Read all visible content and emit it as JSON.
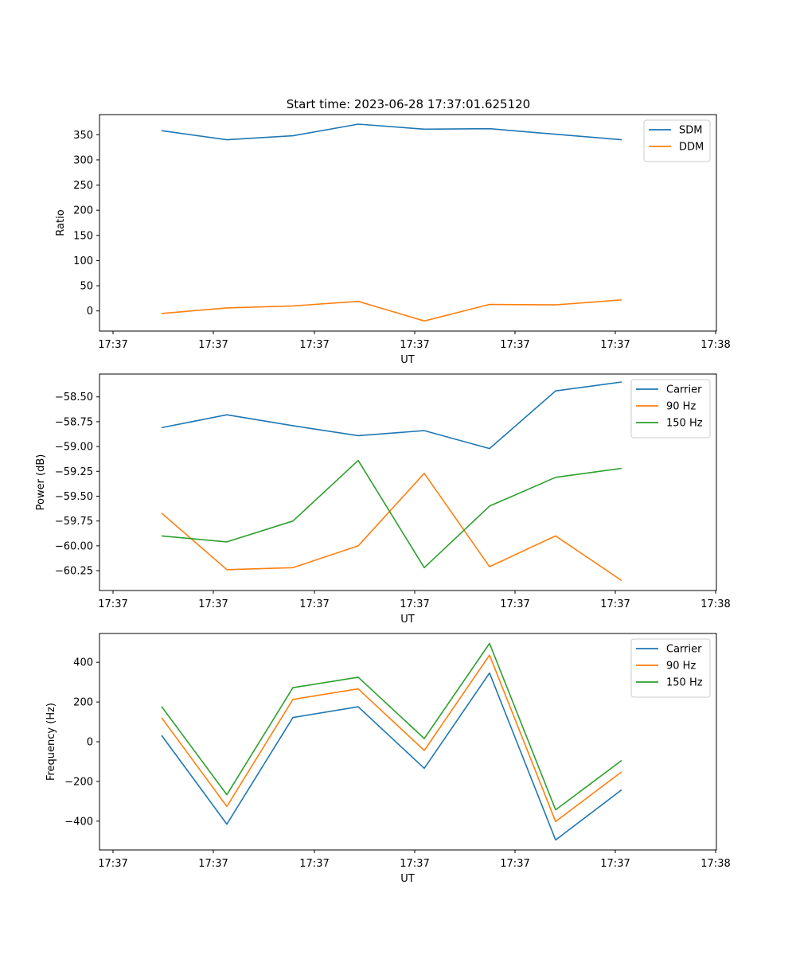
{
  "figure_title": "Start time: 2023-06-28 17:37:01.625120",
  "chart_data": [
    {
      "type": "line",
      "title": "Start time: 2023-06-28 17:37:01.625120",
      "xlabel": "UT",
      "ylabel": "Ratio",
      "x_ticks": [
        "17:37",
        "17:37",
        "17:37",
        "17:37",
        "17:37",
        "17:37",
        "17:38"
      ],
      "x_points": 8,
      "ylim": [
        -40,
        390
      ],
      "y_ticks": [
        0,
        50,
        100,
        150,
        200,
        250,
        300,
        350
      ],
      "y_tick_labels": [
        "0",
        "50",
        "100",
        "150",
        "200",
        "250",
        "300",
        "350"
      ],
      "legend_position": "top-right",
      "grid": false,
      "series": [
        {
          "name": "SDM",
          "color": "#1f77b4",
          "values": [
            358,
            340,
            348,
            371,
            361,
            362,
            351,
            340
          ]
        },
        {
          "name": "DDM",
          "color": "#ff7f0e",
          "values": [
            -5,
            6,
            10,
            19,
            -20,
            13,
            12,
            22
          ]
        }
      ]
    },
    {
      "type": "line",
      "title": "",
      "xlabel": "UT",
      "ylabel": "Power (dB)",
      "x_ticks": [
        "17:37",
        "17:37",
        "17:37",
        "17:37",
        "17:37",
        "17:37",
        "17:38"
      ],
      "x_points": 8,
      "ylim": [
        -60.45,
        -58.27
      ],
      "y_ticks": [
        -60.25,
        -60.0,
        -59.75,
        -59.5,
        -59.25,
        -59.0,
        -58.75,
        -58.5
      ],
      "y_tick_labels": [
        "−60.25",
        "−60.00",
        "−59.75",
        "−59.50",
        "−59.25",
        "−59.00",
        "−58.75",
        "−58.50"
      ],
      "legend_position": "top-right",
      "grid": false,
      "series": [
        {
          "name": "Carrier",
          "color": "#1f77b4",
          "values": [
            -58.81,
            -58.68,
            -58.79,
            -58.89,
            -58.84,
            -59.02,
            -58.44,
            -58.35
          ]
        },
        {
          "name": "90 Hz",
          "color": "#ff7f0e",
          "values": [
            -59.67,
            -60.24,
            -60.22,
            -60.0,
            -59.27,
            -60.21,
            -59.9,
            -60.35
          ]
        },
        {
          "name": "150 Hz",
          "color": "#2ca02c",
          "values": [
            -59.9,
            -59.96,
            -59.75,
            -59.14,
            -60.22,
            -59.6,
            -59.31,
            -59.22
          ]
        }
      ]
    },
    {
      "type": "line",
      "title": "",
      "xlabel": "UT",
      "ylabel": "Frequency (Hz)",
      "x_ticks": [
        "17:37",
        "17:37",
        "17:37",
        "17:37",
        "17:37",
        "17:37",
        "17:38"
      ],
      "x_points": 8,
      "ylim": [
        -545,
        545
      ],
      "y_ticks": [
        -400,
        -200,
        0,
        200,
        400
      ],
      "y_tick_labels": [
        "−400",
        "−200",
        "0",
        "200",
        "400"
      ],
      "legend_position": "top-right",
      "grid": false,
      "series": [
        {
          "name": "Carrier",
          "color": "#1f77b4",
          "values": [
            32,
            -415,
            122,
            176,
            -134,
            346,
            -495,
            -242
          ]
        },
        {
          "name": "90 Hz",
          "color": "#ff7f0e",
          "values": [
            121,
            -326,
            213,
            266,
            -44,
            436,
            -402,
            -152
          ]
        },
        {
          "name": "150 Hz",
          "color": "#2ca02c",
          "values": [
            177,
            -267,
            272,
            325,
            16,
            495,
            -343,
            -94
          ]
        }
      ]
    }
  ]
}
